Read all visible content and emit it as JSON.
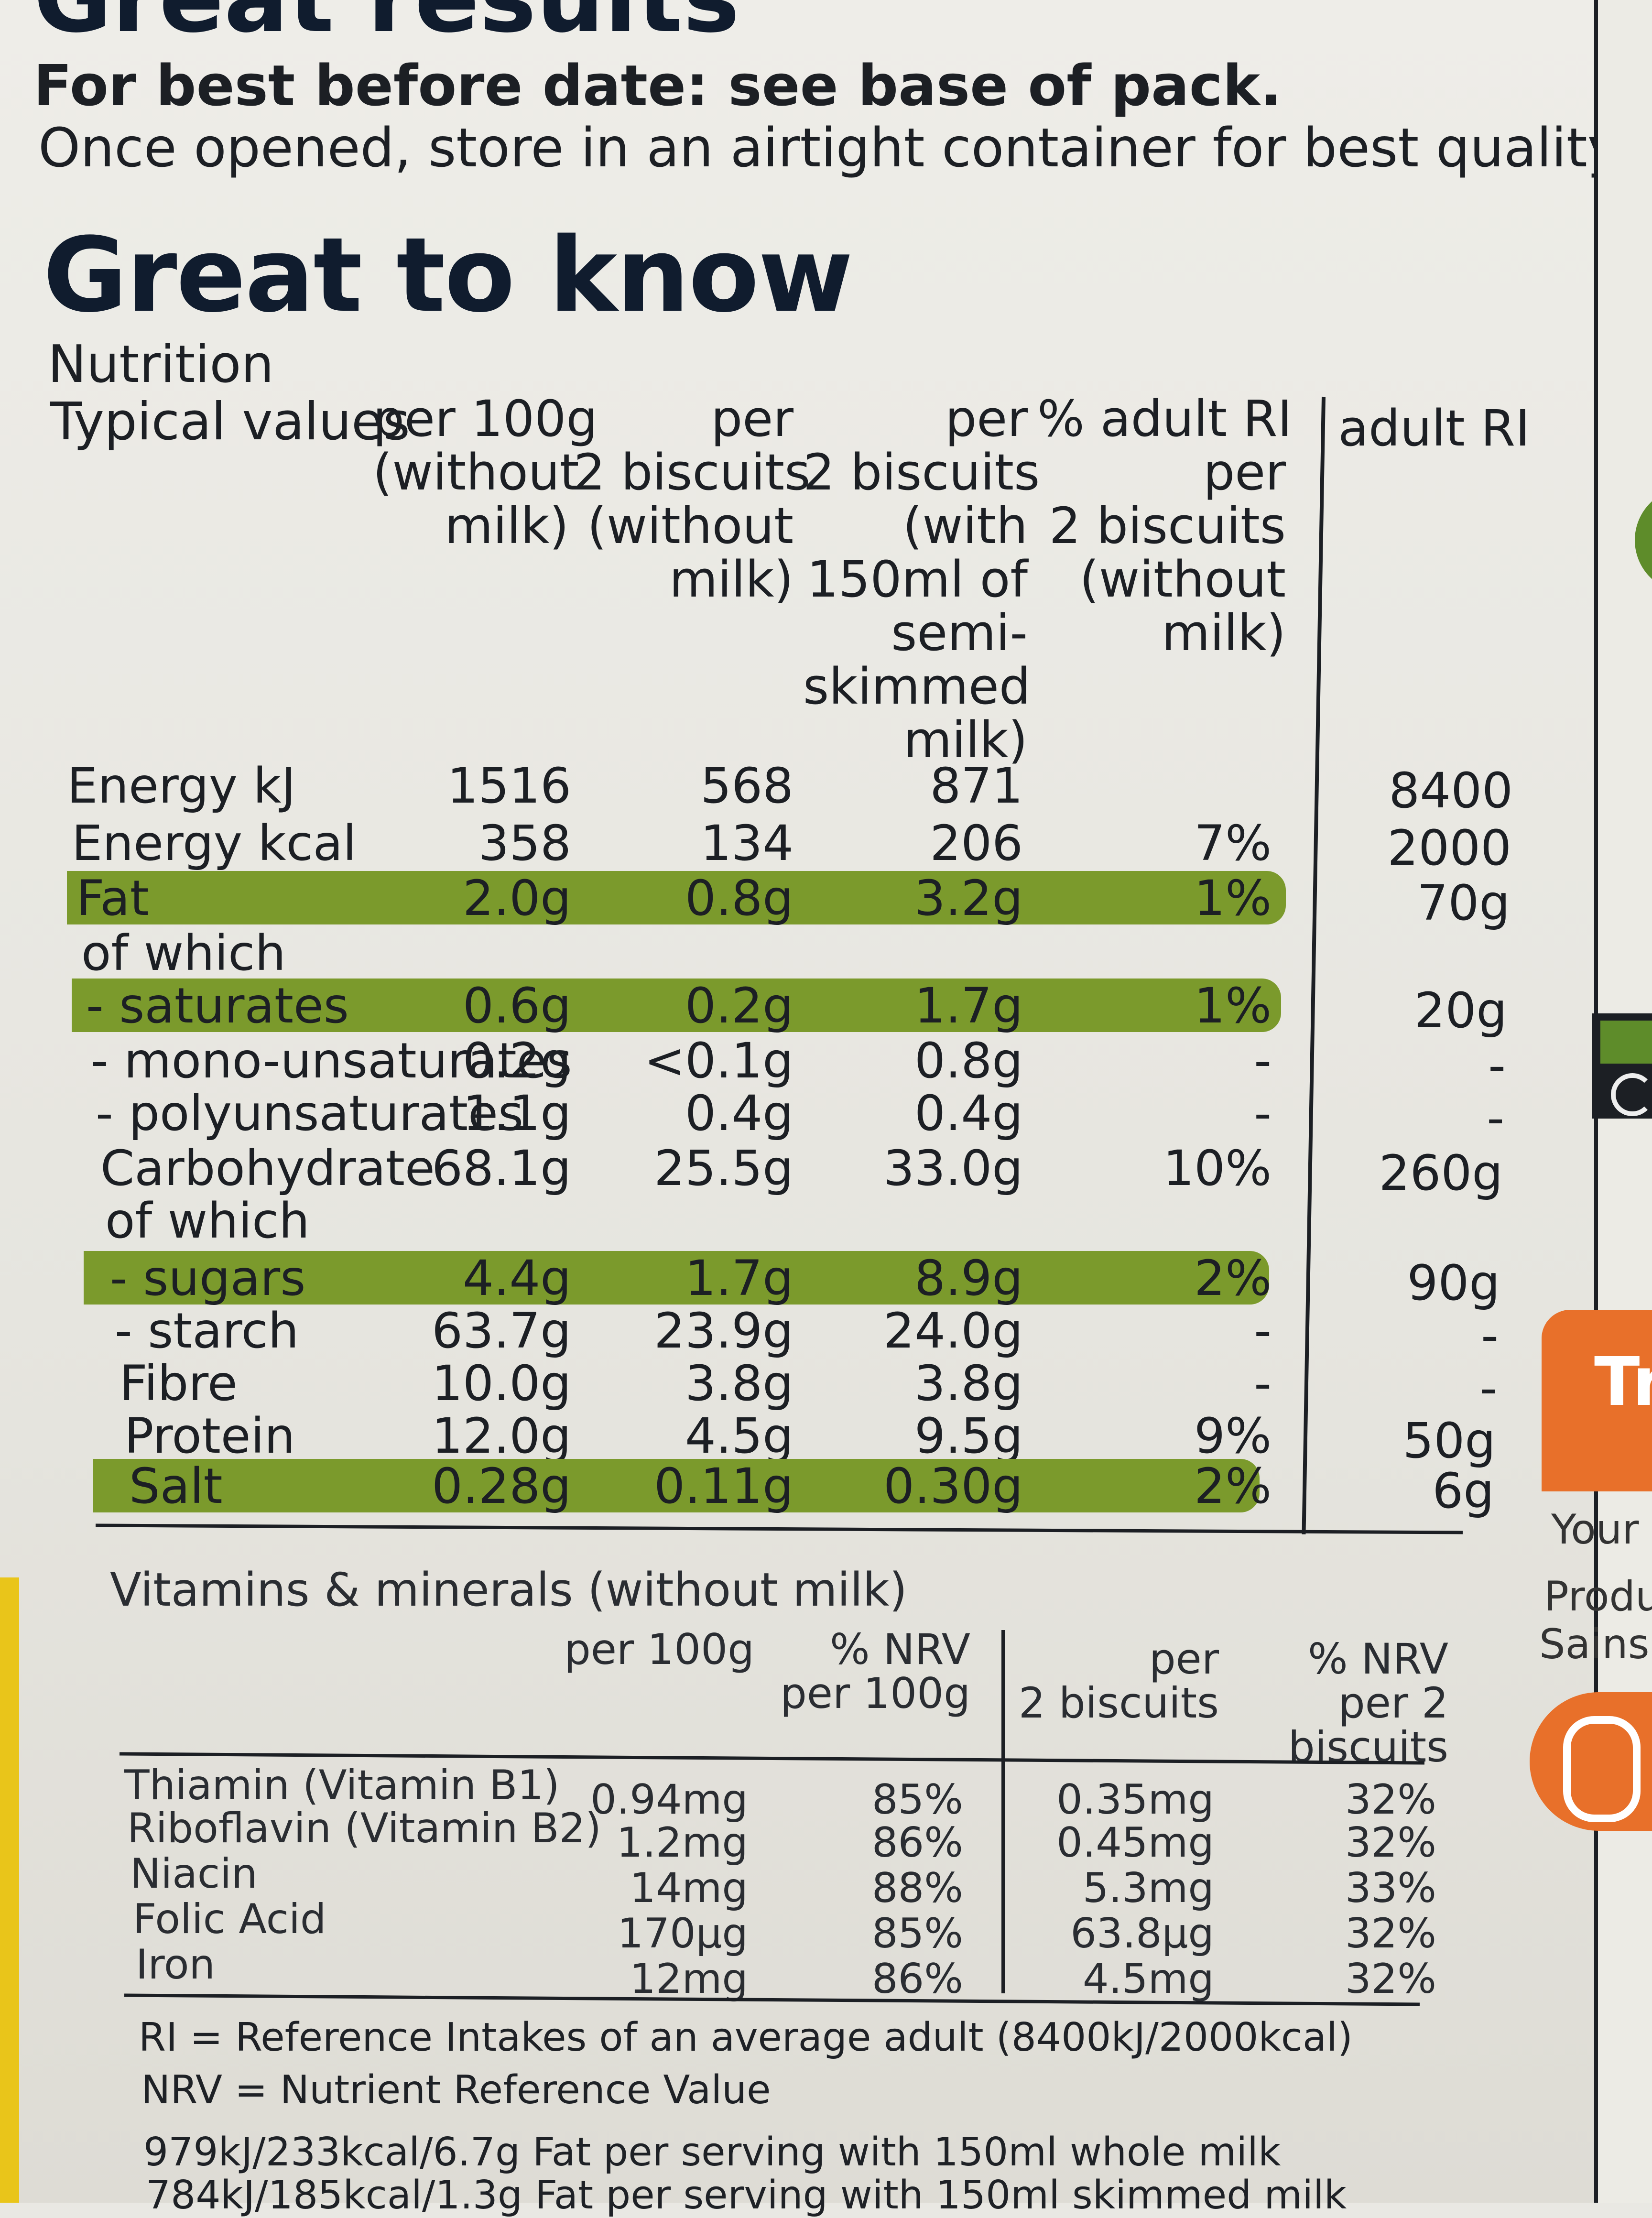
{
  "header": {
    "cut_title": "Great results",
    "best_before": "For best before date: see base of pack.",
    "storage": "Once opened, store in an airtight container for best quality.",
    "section_title": "Great to know",
    "nutrition_label": "Nutrition"
  },
  "nutrition": {
    "headers": {
      "typical": "Typical values",
      "col1": [
        "per 100g",
        "(without",
        "milk)"
      ],
      "col2": [
        "per",
        "2 biscuits",
        "(without",
        "milk)"
      ],
      "col3": [
        "per",
        "2 biscuits",
        "(with",
        "150ml of",
        "semi-",
        "skimmed",
        "milk)"
      ],
      "col4": [
        "% adult RI",
        "per",
        "2 biscuits",
        "(without",
        "milk)"
      ],
      "col5": [
        "adult RI"
      ]
    },
    "rows": [
      {
        "label": "Energy kJ",
        "c1": "1516",
        "c2": "568",
        "c3": "871",
        "c4": "",
        "c5": "8400",
        "hl": false
      },
      {
        "label": "Energy kcal",
        "c1": "358",
        "c2": "134",
        "c3": "206",
        "c4": "7%",
        "c5": "2000",
        "hl": false
      },
      {
        "label": "Fat",
        "c1": "2.0g",
        "c2": "0.8g",
        "c3": "3.2g",
        "c4": "1%",
        "c5": "70g",
        "hl": true
      },
      {
        "label": "of which",
        "c1": "",
        "c2": "",
        "c3": "",
        "c4": "",
        "c5": "",
        "hl": false
      },
      {
        "label": "- saturates",
        "c1": "0.6g",
        "c2": "0.2g",
        "c3": "1.7g",
        "c4": "1%",
        "c5": "20g",
        "hl": true
      },
      {
        "label": "- mono-unsaturates",
        "c1": "0.2g",
        "c2": "<0.1g",
        "c3": "0.8g",
        "c4": "-",
        "c5": "-",
        "hl": false
      },
      {
        "label": "- polyunsaturates",
        "c1": "1.1g",
        "c2": "0.4g",
        "c3": "0.4g",
        "c4": "-",
        "c5": "-",
        "hl": false
      },
      {
        "label": "Carbohydrate",
        "c1": "68.1g",
        "c2": "25.5g",
        "c3": "33.0g",
        "c4": "10%",
        "c5": "260g",
        "hl": false
      },
      {
        "label": "of which",
        "c1": "",
        "c2": "",
        "c3": "",
        "c4": "",
        "c5": "",
        "hl": false
      },
      {
        "label": "- sugars",
        "c1": "4.4g",
        "c2": "1.7g",
        "c3": "8.9g",
        "c4": "2%",
        "c5": "90g",
        "hl": true
      },
      {
        "label": "- starch",
        "c1": "63.7g",
        "c2": "23.9g",
        "c3": "24.0g",
        "c4": "-",
        "c5": "-",
        "hl": false
      },
      {
        "label": "Fibre",
        "c1": "10.0g",
        "c2": "3.8g",
        "c3": "3.8g",
        "c4": "-",
        "c5": "-",
        "hl": false
      },
      {
        "label": "Protein",
        "c1": "12.0g",
        "c2": "4.5g",
        "c3": "9.5g",
        "c4": "9%",
        "c5": "50g",
        "hl": false
      },
      {
        "label": "Salt",
        "c1": "0.28g",
        "c2": "0.11g",
        "c3": "0.30g",
        "c4": "2%",
        "c5": "6g",
        "hl": true
      }
    ]
  },
  "vitamins": {
    "title": "Vitamins & minerals (without milk)",
    "headers": {
      "c1": [
        "per 100g"
      ],
      "c2": [
        "% NRV",
        "per 100g"
      ],
      "c3": [
        "per",
        "2 biscuits"
      ],
      "c4": [
        "% NRV",
        "per 2",
        "biscuits"
      ]
    },
    "rows": [
      {
        "label": "Thiamin (Vitamin B1)",
        "c1": "0.94mg",
        "c2": "85%",
        "c3": "0.35mg",
        "c4": "32%"
      },
      {
        "label": "Riboflavin (Vitamin B2)",
        "c1": "1.2mg",
        "c2": "86%",
        "c3": "0.45mg",
        "c4": "32%"
      },
      {
        "label": "Niacin",
        "c1": "14mg",
        "c2": "88%",
        "c3": "5.3mg",
        "c4": "33%"
      },
      {
        "label": "Folic Acid",
        "c1": "170µg",
        "c2": "85%",
        "c3": "63.8µg",
        "c4": "32%"
      },
      {
        "label": "Iron",
        "c1": "12mg",
        "c2": "86%",
        "c3": "4.5mg",
        "c4": "32%"
      }
    ]
  },
  "footer": {
    "ri": "RI = Reference Intakes of an average adult (8400kJ/2000kcal)",
    "nrv": "NRV = Nutrient Reference Value",
    "whole_milk": "979kJ/233kcal/6.7g Fat per serving with 150ml whole milk",
    "skimmed_milk": "784kJ/185kcal/1.3g Fat per serving with 150ml skimmed milk"
  },
  "side_panel": {
    "badge_text": "Tr",
    "line1": "Your",
    "line2": "Produ",
    "line3": "Sainsb"
  },
  "colors": {
    "highlight": "#7b9a2c",
    "orange": "#e8702a",
    "navy": "#101c2e"
  }
}
